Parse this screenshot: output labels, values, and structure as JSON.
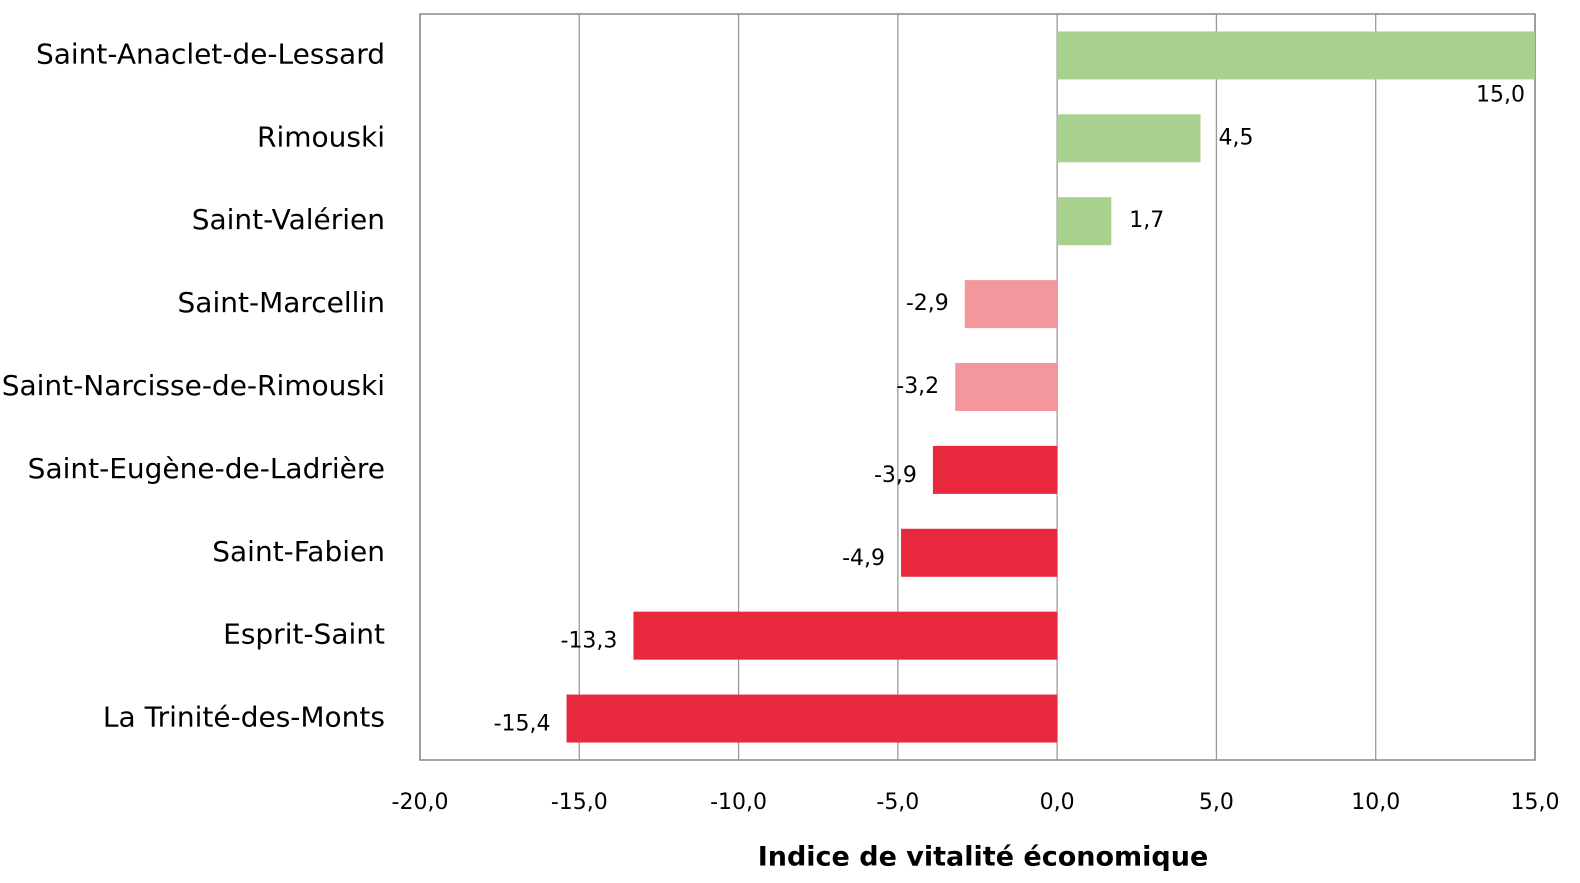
{
  "chart_data": {
    "type": "barh",
    "categories": [
      "Saint-Anaclet-de-Lessard",
      "Rimouski",
      "Saint-Valérien",
      "Saint-Marcellin",
      "Saint-Narcisse-de-Rimouski",
      "Saint-Eugène-de-Ladrière",
      "Saint-Fabien",
      "Esprit-Saint",
      "La Trinité-des-Monts"
    ],
    "values": [
      15.0,
      4.5,
      1.7,
      -2.9,
      -3.2,
      -3.9,
      -4.9,
      -13.3,
      -15.4
    ],
    "value_labels": [
      "15,0",
      "4,5",
      "1,7",
      "-2,9",
      "-3,2",
      "-3,9",
      "-4,9",
      "-13,3",
      "-15,4"
    ],
    "colors": [
      "#a9d18e",
      "#a9d18e",
      "#a9d18e",
      "#f4979c",
      "#f4979c",
      "#e8283c",
      "#e8283c",
      "#e8283c",
      "#e8283c"
    ],
    "xlabel": "Indice de vitalité économique",
    "xlim": [
      -20,
      15
    ],
    "xticks": [
      {
        "value": -20,
        "label": "-20,0"
      },
      {
        "value": -15,
        "label": "-15,0"
      },
      {
        "value": -10,
        "label": "-10,0"
      },
      {
        "value": -5,
        "label": "-5,0"
      },
      {
        "value": 0,
        "label": "0,0"
      },
      {
        "value": 5,
        "label": "5,0"
      },
      {
        "value": 10,
        "label": "10,0"
      },
      {
        "value": 15,
        "label": "15,0"
      }
    ],
    "grid": true
  }
}
